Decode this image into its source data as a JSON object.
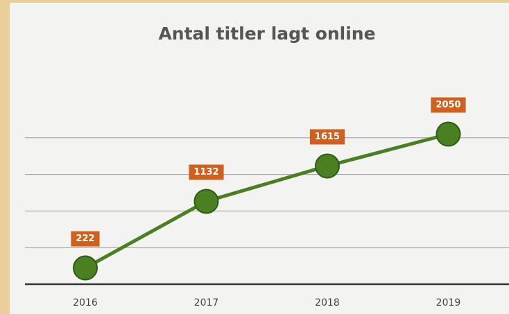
{
  "chart_data": {
    "type": "line",
    "title": "Antal titler lagt online",
    "categories": [
      "2016",
      "2017",
      "2018",
      "2019"
    ],
    "series": [
      {
        "name": "Antal titler",
        "color": "#4a7f22",
        "values": [
          222,
          1132,
          1615,
          2050
        ]
      }
    ],
    "ylim": [
      0,
      2500
    ],
    "yticks": [
      0,
      500,
      1000,
      1500,
      2000
    ],
    "grid": true,
    "label_color": "#d0601e"
  }
}
